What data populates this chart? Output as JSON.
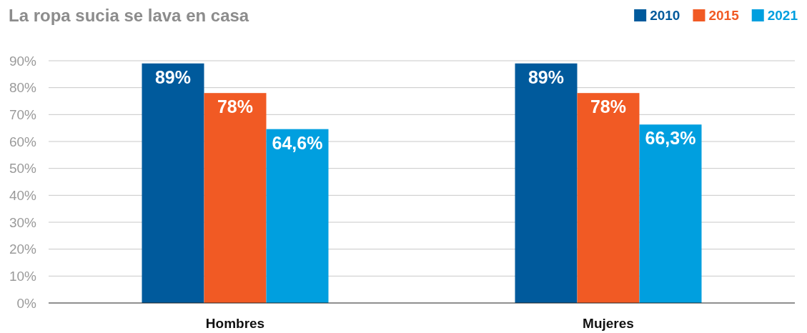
{
  "chart_data": {
    "type": "bar",
    "title": "La ropa sucia se lava en casa",
    "categories": [
      "Hombres",
      "Mujeres"
    ],
    "series": [
      {
        "name": "2010",
        "color": "#005a9c",
        "values": [
          89,
          89
        ],
        "value_labels": [
          "89%",
          "89%"
        ]
      },
      {
        "name": "2015",
        "color": "#f15a24",
        "values": [
          78,
          78
        ],
        "value_labels": [
          "78%",
          "78%"
        ]
      },
      {
        "name": "2021",
        "color": "#009fdf",
        "values": [
          64.6,
          66.3
        ],
        "value_labels": [
          "64,6%",
          "66,3%"
        ]
      }
    ],
    "ylim": [
      0,
      90
    ],
    "yticks": [
      {
        "value": 0,
        "label": "0%"
      },
      {
        "value": 10,
        "label": "10%"
      },
      {
        "value": 20,
        "label": "20%"
      },
      {
        "value": 30,
        "label": "30%"
      },
      {
        "value": 40,
        "label": "40%"
      },
      {
        "value": 50,
        "label": "50%"
      },
      {
        "value": 60,
        "label": "60%"
      },
      {
        "value": 70,
        "label": "70%"
      },
      {
        "value": 80,
        "label": "80%"
      },
      {
        "value": 90,
        "label": "90%"
      }
    ],
    "grid": "y",
    "legend": "top right"
  }
}
